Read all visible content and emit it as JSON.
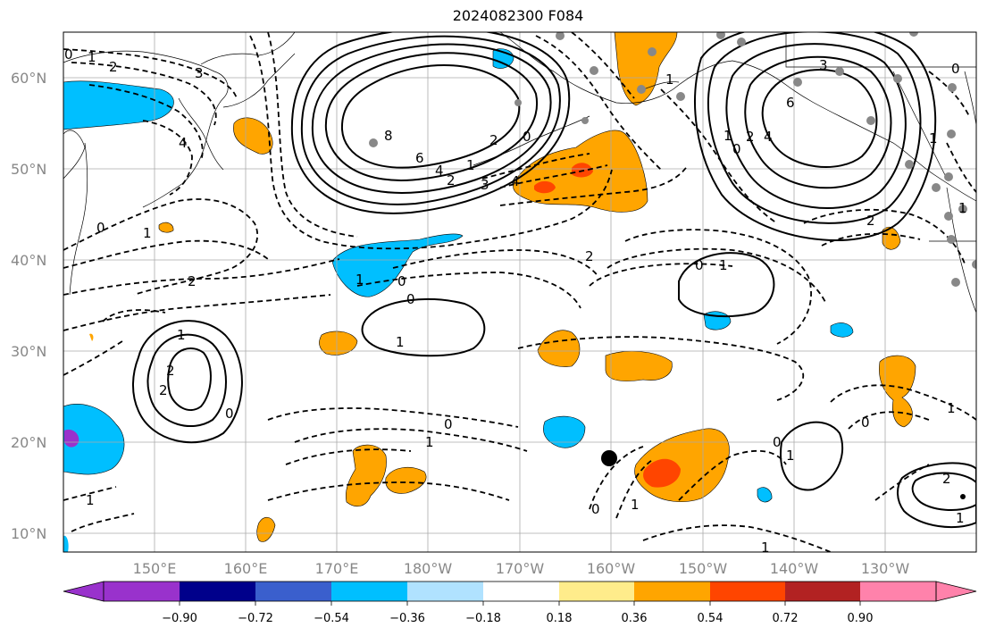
{
  "title": "2024082300 F084",
  "lat_labels": [
    "60°N",
    "50°N",
    "40°N",
    "30°N",
    "20°N",
    "10°N"
  ],
  "lon_labels": [
    "150°E",
    "160°E",
    "170°E",
    "180°W",
    "170°W",
    "160°W",
    "150°W",
    "140°W",
    "130°W"
  ],
  "contour_labels": {
    "c0a": "0",
    "c1a": "1",
    "c2a": "2",
    "c3a": "3",
    "c4a": "4",
    "c2b": "2",
    "c1b": "1",
    "c8": "8",
    "c6": "6",
    "c4b": "4",
    "c2c": "2",
    "c0b": "0",
    "c1c": "1",
    "c2d": "2",
    "c3b": "3",
    "c4c": "4",
    "c3c": "3",
    "c6b": "6",
    "c4d": "4",
    "c2e": "2",
    "c1d": "1",
    "c0c": "0",
    "c1e": "1",
    "c2f": "2",
    "c1f": "1",
    "c1g": "1",
    "c0d": "0",
    "c2g": "2",
    "c0e": "0",
    "c1h": "1",
    "c0f": "0",
    "c1i": "1",
    "c1j": "1",
    "c2h": "2",
    "c2i": "2",
    "c0g": "0",
    "c0h": "0",
    "c1k": "1",
    "c0i": "0",
    "c1l": "1",
    "c0j": "0",
    "c1m": "1",
    "c2j": "2",
    "c1n": "1"
  },
  "colorbar": {
    "levels": [
      "−0.90",
      "−0.72",
      "−0.54",
      "−0.36",
      "−0.18",
      "0.18",
      "0.36",
      "0.54",
      "0.72",
      "0.90"
    ],
    "colors": [
      "#9932cc",
      "#00008b",
      "#3a5fcd",
      "#00bfff",
      "#b0e2ff",
      "#ffffff",
      "#ffec8b",
      "#ffa500",
      "#ff4500",
      "#b22222",
      "#ff82ab"
    ]
  },
  "shading_colors": {
    "light_blue": "#00bfff",
    "orange": "#ffa500",
    "red_orange": "#ff4500",
    "purple": "#9932cc"
  }
}
